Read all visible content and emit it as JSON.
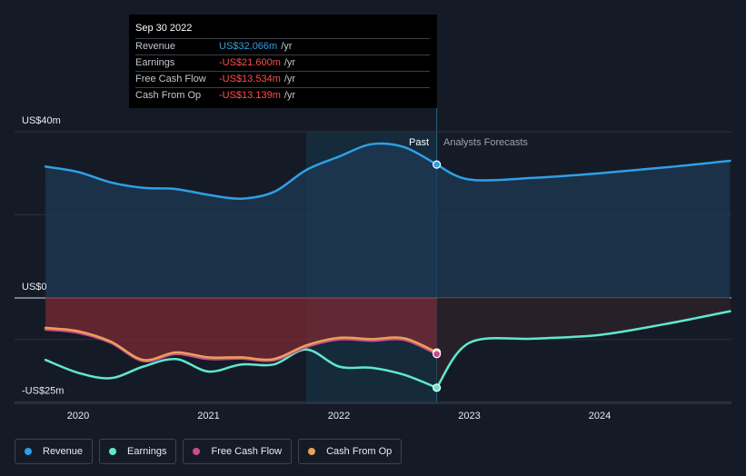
{
  "tooltip": {
    "date": "Sep 30 2022",
    "rows": [
      {
        "label": "Revenue",
        "value": "US$32.066m",
        "unit": "/yr",
        "color": "#2f9fe6"
      },
      {
        "label": "Earnings",
        "value": "-US$21.600m",
        "unit": "/yr",
        "color": "#ff4d4d"
      },
      {
        "label": "Free Cash Flow",
        "value": "-US$13.534m",
        "unit": "/yr",
        "color": "#ff4d4d"
      },
      {
        "label": "Cash From Op",
        "value": "-US$13.139m",
        "unit": "/yr",
        "color": "#ff4d4d"
      }
    ]
  },
  "labels": {
    "past": "Past",
    "forecast": "Analysts Forecasts"
  },
  "colors": {
    "revenue": "#2f9fe6",
    "earnings": "#5ee8cf",
    "free_cash_flow": "#c94c8c",
    "cash_from_op": "#e8a15a",
    "background": "#151b26"
  },
  "legend": [
    {
      "label": "Revenue",
      "color": "#2f9fe6",
      "icon": "revenue-dot"
    },
    {
      "label": "Earnings",
      "color": "#5ee8cf",
      "icon": "earnings-dot"
    },
    {
      "label": "Free Cash Flow",
      "color": "#c94c8c",
      "icon": "free-cash-flow-dot"
    },
    {
      "label": "Cash From Op",
      "color": "#e8a15a",
      "icon": "cash-from-op-dot"
    }
  ],
  "chart_data": {
    "type": "line",
    "title": "",
    "xlabel": "",
    "ylabel": "",
    "x_range": [
      2019.75,
      2025.0
    ],
    "ylim": [
      -25,
      40
    ],
    "y_ticks": [
      {
        "value": 40,
        "label": "US$40m"
      },
      {
        "value": 0,
        "label": "US$0"
      },
      {
        "value": -25,
        "label": "-US$25m"
      }
    ],
    "x_ticks": [
      {
        "value": 2020,
        "label": "2020"
      },
      {
        "value": 2021,
        "label": "2021"
      },
      {
        "value": 2022,
        "label": "2022"
      },
      {
        "value": 2023,
        "label": "2023"
      },
      {
        "value": 2024,
        "label": "2024"
      }
    ],
    "grid": true,
    "past_end": 2022.75,
    "highlight_start": 2021.75,
    "series": [
      {
        "name": "Revenue",
        "past": [
          [
            2019.75,
            31.6
          ],
          [
            2020.0,
            30.3
          ],
          [
            2020.25,
            27.8
          ],
          [
            2020.5,
            26.5
          ],
          [
            2020.75,
            26.2
          ],
          [
            2021.0,
            24.8
          ],
          [
            2021.25,
            23.9
          ],
          [
            2021.5,
            25.5
          ],
          [
            2021.75,
            30.8
          ],
          [
            2022.0,
            34.0
          ],
          [
            2022.25,
            37.0
          ],
          [
            2022.5,
            36.3
          ],
          [
            2022.75,
            32.1
          ]
        ],
        "forecast": [
          [
            2022.75,
            32.1
          ],
          [
            2023.0,
            28.5
          ],
          [
            2023.5,
            28.9
          ],
          [
            2024.0,
            30.0
          ],
          [
            2024.5,
            31.4
          ],
          [
            2025.0,
            33.0
          ]
        ]
      },
      {
        "name": "Earnings",
        "past": [
          [
            2019.75,
            -14.9
          ],
          [
            2020.0,
            -18.0
          ],
          [
            2020.25,
            -19.3
          ],
          [
            2020.5,
            -16.5
          ],
          [
            2020.75,
            -14.7
          ],
          [
            2021.0,
            -17.7
          ],
          [
            2021.25,
            -16.0
          ],
          [
            2021.5,
            -16.0
          ],
          [
            2021.75,
            -12.4
          ],
          [
            2022.0,
            -16.5
          ],
          [
            2022.25,
            -16.8
          ],
          [
            2022.5,
            -18.5
          ],
          [
            2022.75,
            -21.6
          ]
        ],
        "forecast": [
          [
            2022.75,
            -21.6
          ],
          [
            2023.0,
            -10.8
          ],
          [
            2023.5,
            -9.8
          ],
          [
            2024.0,
            -8.9
          ],
          [
            2024.5,
            -6.3
          ],
          [
            2025.0,
            -3.2
          ]
        ]
      },
      {
        "name": "Free Cash Flow",
        "past": [
          [
            2019.75,
            -7.6
          ],
          [
            2020.0,
            -8.4
          ],
          [
            2020.25,
            -10.8
          ],
          [
            2020.5,
            -15.2
          ],
          [
            2020.75,
            -13.5
          ],
          [
            2021.0,
            -14.7
          ],
          [
            2021.25,
            -14.6
          ],
          [
            2021.5,
            -15.0
          ],
          [
            2021.75,
            -11.8
          ],
          [
            2022.0,
            -10.0
          ],
          [
            2022.25,
            -10.3
          ],
          [
            2022.5,
            -10.1
          ],
          [
            2022.75,
            -13.5
          ]
        ],
        "forecast": []
      },
      {
        "name": "Cash From Op",
        "past": [
          [
            2019.75,
            -7.2
          ],
          [
            2020.0,
            -8.0
          ],
          [
            2020.25,
            -10.5
          ],
          [
            2020.5,
            -14.9
          ],
          [
            2020.75,
            -13.1
          ],
          [
            2021.0,
            -14.3
          ],
          [
            2021.25,
            -14.3
          ],
          [
            2021.5,
            -14.7
          ],
          [
            2021.75,
            -11.4
          ],
          [
            2022.0,
            -9.6
          ],
          [
            2022.25,
            -9.9
          ],
          [
            2022.5,
            -9.7
          ],
          [
            2022.75,
            -13.1
          ]
        ],
        "forecast": []
      }
    ]
  }
}
